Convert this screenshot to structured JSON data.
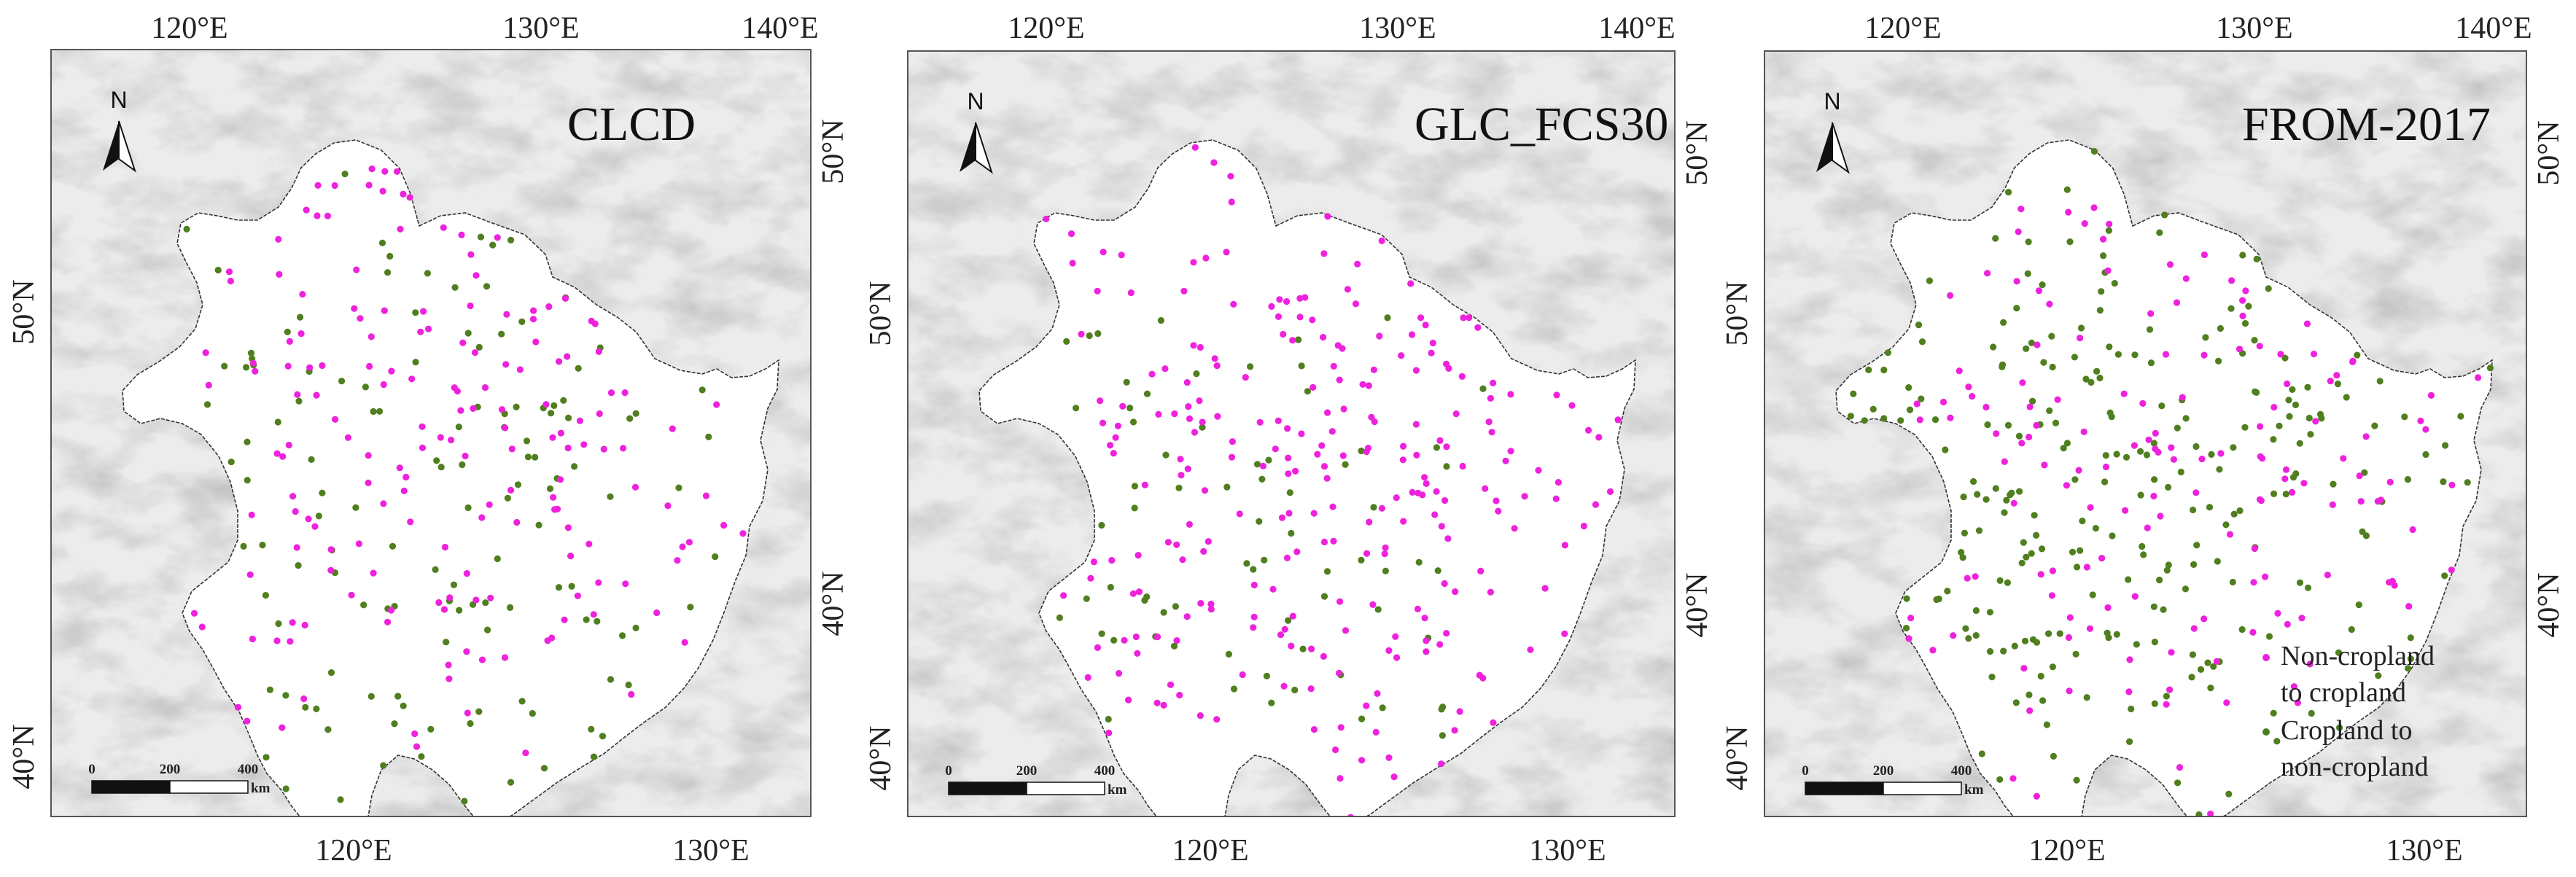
{
  "colors": {
    "non_to_crop": "#ee22dd",
    "crop_to_non": "#4f7f1e",
    "region_fill": "#ffffff",
    "background": "#ececec",
    "frame": "#555555"
  },
  "panels": [
    {
      "title": "CLCD"
    },
    {
      "title": "GLC_FCS30"
    },
    {
      "title": "FROM-2017"
    }
  ],
  "axes": {
    "top_ticks": [
      "120°E",
      "130°E",
      "140°E"
    ],
    "bottom_ticks": [
      "120°E",
      "130°E"
    ],
    "right_ticks": [
      "50°N",
      "40°N"
    ],
    "left_ticks": [
      "50°N",
      "40°N"
    ]
  },
  "north_label": "N",
  "scale_bar": {
    "labels": [
      "0",
      "200",
      "400"
    ],
    "unit": "km"
  },
  "legend": {
    "non_to_crop_lines": [
      "Non-cropland",
      "to cropland"
    ],
    "crop_to_non_lines": [
      "Cropland to",
      "non-cropland"
    ]
  },
  "icons": {
    "north_arrow": "north-arrow-icon",
    "scale": "scale-bar-icon"
  }
}
